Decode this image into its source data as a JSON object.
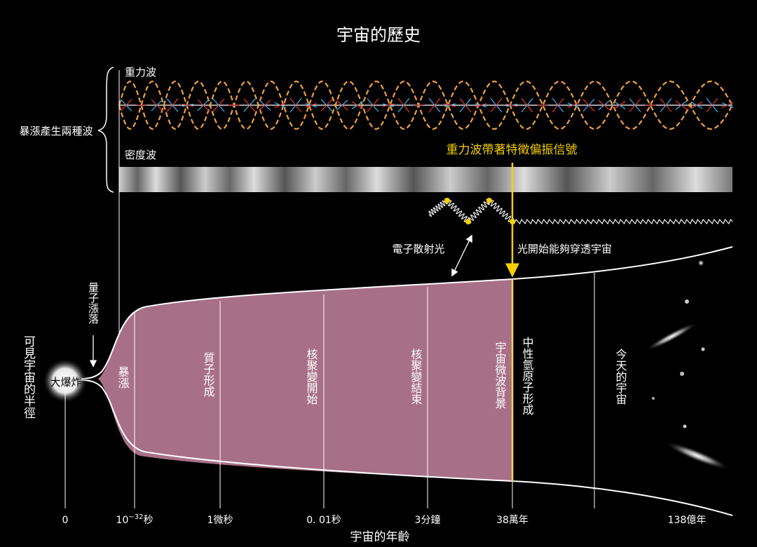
{
  "title": "宇宙的歷史",
  "left_brace_label": "暴漲產生兩種波",
  "gravity_wave_label": "重力波",
  "density_wave_label": "密度波",
  "polarization_label": "重力波帶著特徵偏振信號",
  "scatter_label": "電子散射光",
  "transparent_label": "光開始能夠穿透宇宙",
  "observable_radius_label": "可見宇宙的半徑",
  "quantum_fluct_label": "量子漲落",
  "big_bang_label": "大爆炸",
  "eras": [
    {
      "label": "暴漲"
    },
    {
      "label": "質子形成"
    },
    {
      "label": "核聚變開始"
    },
    {
      "label": "核聚變結束"
    },
    {
      "label": "宇宙微波背景"
    },
    {
      "label": "中性氫原子形成"
    },
    {
      "label": "今天的宇宙"
    }
  ],
  "time_ticks": [
    {
      "label": "0"
    },
    {
      "label_base": "10",
      "label_sup": "−32",
      "label_unit": "秒"
    },
    {
      "label": "1微秒"
    },
    {
      "label": "0. 01秒"
    },
    {
      "label": "3分鐘"
    },
    {
      "label": "38萬年"
    },
    {
      "label": "138億年"
    }
  ],
  "x_axis_label": "宇宙的年齡",
  "colors": {
    "background": "#000000",
    "highlight_yellow": "#f5d000",
    "wave_orange": "#f0a040",
    "arrow_blue": "#3aa8e8",
    "arrow_red": "#e03030",
    "text": "#ffffff"
  }
}
